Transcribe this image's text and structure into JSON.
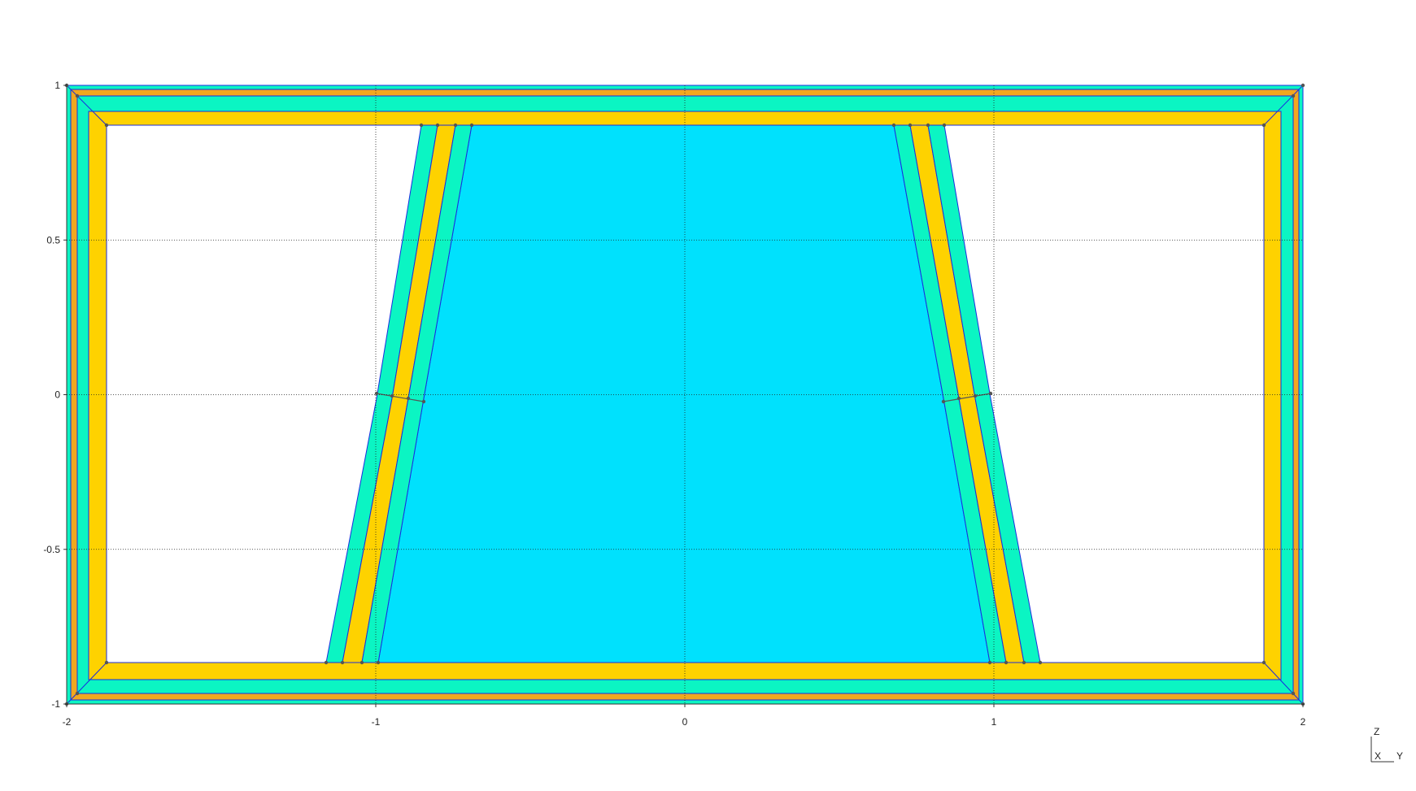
{
  "viewport": {
    "x_axis": {
      "range": [
        -2,
        2
      ],
      "ticks": [
        "-2",
        "-1",
        "0",
        "1",
        "2"
      ]
    },
    "y_axis": {
      "range": [
        -1,
        1
      ],
      "ticks": [
        "1",
        "0.5",
        "0",
        "-0.5",
        "-1"
      ]
    },
    "grid": true
  },
  "triad": {
    "up": "Z",
    "origin": "X",
    "right": "Y"
  },
  "colors": {
    "green": "#0bf5c3",
    "orange": "#f1a81f",
    "yellow": "#fed200",
    "blue": "#00e1fd",
    "outline": "#1b2ce0",
    "node": "#555555",
    "grid": "#222222"
  }
}
